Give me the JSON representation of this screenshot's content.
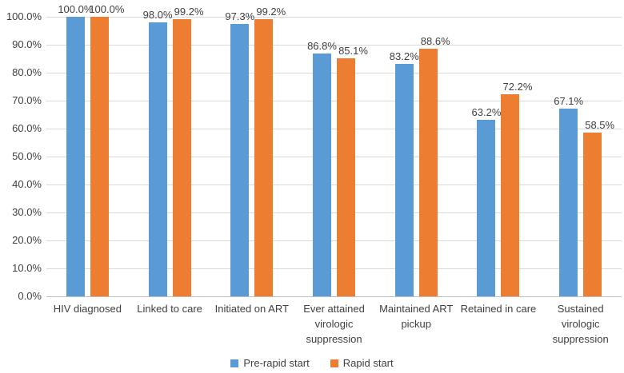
{
  "chart_data": {
    "type": "bar",
    "title": "",
    "xlabel": "",
    "ylabel": "",
    "categories": [
      "HIV diagnosed",
      "Linked to care",
      "Initiated on ART",
      "Ever attained virologic suppression",
      "Maintained ART pickup",
      "Retained in care",
      "Sustained virologic suppression"
    ],
    "series": [
      {
        "name": "Pre-rapid start",
        "color": "#5B9BD5",
        "values": [
          100.0,
          98.0,
          97.3,
          86.8,
          83.2,
          63.2,
          67.1
        ],
        "labels": [
          "100.0%",
          "98.0%",
          "97.3%",
          "86.8%",
          "83.2%",
          "63.2%",
          "67.1%"
        ]
      },
      {
        "name": "Rapid start",
        "color": "#ED7D31",
        "values": [
          100.0,
          99.2,
          99.2,
          85.1,
          88.6,
          72.2,
          58.5
        ],
        "labels": [
          "100.0%",
          "99.2%",
          "99.2%",
          "85.1%",
          "88.6%",
          "72.2%",
          "58.5%"
        ]
      }
    ],
    "y_axis": {
      "min": 0,
      "max": 100,
      "step": 10,
      "tick_labels": [
        "0.0%",
        "10.0%",
        "20.0%",
        "30.0%",
        "40.0%",
        "50.0%",
        "60.0%",
        "70.0%",
        "80.0%",
        "90.0%",
        "100.0%"
      ]
    },
    "grid": true,
    "legend_position": "bottom",
    "colors": {
      "gridline": "#D9D9D9",
      "axis_line": "#BFBFBF",
      "text": "#404040",
      "background": "#FFFFFF"
    }
  }
}
